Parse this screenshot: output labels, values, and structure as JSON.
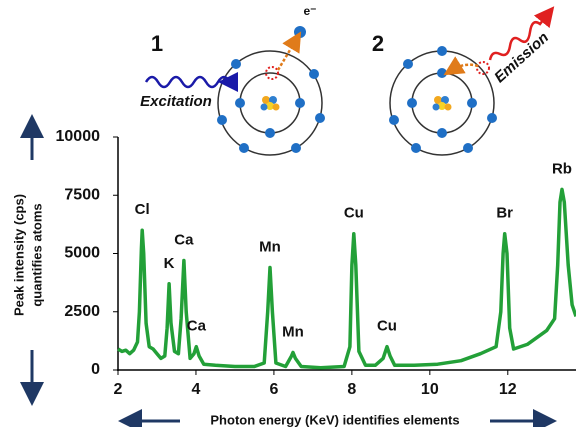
{
  "chart_data": {
    "type": "line",
    "x_label": "Photon energy (KeV) identifies elements",
    "y_label": [
      "Peak intensity (cps)",
      "quantifies atoms"
    ],
    "diagram_labels": [
      "1",
      "2",
      "e⁻",
      "Excitation",
      "Emission"
    ],
    "x": [
      2.0,
      2.1,
      2.2,
      2.3,
      2.4,
      2.5,
      2.55,
      2.6,
      2.62,
      2.66,
      2.72,
      2.8,
      2.9,
      3.0,
      3.1,
      3.2,
      3.26,
      3.31,
      3.36,
      3.45,
      3.55,
      3.62,
      3.69,
      3.75,
      3.85,
      3.95,
      4.01,
      4.08,
      4.2,
      4.5,
      5.0,
      5.5,
      5.75,
      5.84,
      5.9,
      5.96,
      6.05,
      6.3,
      6.45,
      6.49,
      6.55,
      6.7,
      7.2,
      7.8,
      7.95,
      8.0,
      8.05,
      8.1,
      8.18,
      8.35,
      8.6,
      8.8,
      8.9,
      8.98,
      9.1,
      9.6,
      10.2,
      10.8,
      11.3,
      11.7,
      11.82,
      11.88,
      11.92,
      11.98,
      12.05,
      12.15,
      12.5,
      13.0,
      13.2,
      13.28,
      13.34,
      13.39,
      13.45,
      13.55,
      13.65,
      13.75
    ],
    "values": [
      900,
      800,
      850,
      700,
      850,
      1200,
      2500,
      5200,
      6000,
      5000,
      2000,
      1000,
      900,
      700,
      500,
      600,
      1800,
      3700,
      2000,
      800,
      700,
      2200,
      4700,
      2500,
      500,
      700,
      1000,
      600,
      250,
      200,
      150,
      150,
      300,
      2500,
      4400,
      2500,
      300,
      150,
      600,
      750,
      500,
      150,
      100,
      150,
      1000,
      4500,
      5850,
      4500,
      800,
      200,
      200,
      500,
      1000,
      600,
      200,
      200,
      250,
      400,
      700,
      1000,
      2500,
      5000,
      5850,
      5000,
      1800,
      900,
      1100,
      1700,
      2200,
      4500,
      7200,
      7750,
      7200,
      4500,
      2800,
      2300
    ],
    "color": "#23a038",
    "annotations": [
      {
        "text": "Cl",
        "x": 2.62
      },
      {
        "text": "K",
        "x": 3.31
      },
      {
        "text": "Ca",
        "x": 3.69
      },
      {
        "text": "Ca",
        "x": 4.01
      },
      {
        "text": "Mn",
        "x": 5.9
      },
      {
        "text": "Mn",
        "x": 6.49
      },
      {
        "text": "Cu",
        "x": 8.05
      },
      {
        "text": "Cu",
        "x": 8.9
      },
      {
        "text": "Br",
        "x": 11.92
      },
      {
        "text": "Rb",
        "x": 13.39
      }
    ],
    "xlim": [
      2,
      13.75
    ],
    "xticks": [
      2,
      4,
      6,
      8,
      10,
      12
    ],
    "ylim": [
      0,
      10000
    ],
    "yticks": [
      0,
      2500,
      5000,
      7500,
      10000
    ]
  }
}
